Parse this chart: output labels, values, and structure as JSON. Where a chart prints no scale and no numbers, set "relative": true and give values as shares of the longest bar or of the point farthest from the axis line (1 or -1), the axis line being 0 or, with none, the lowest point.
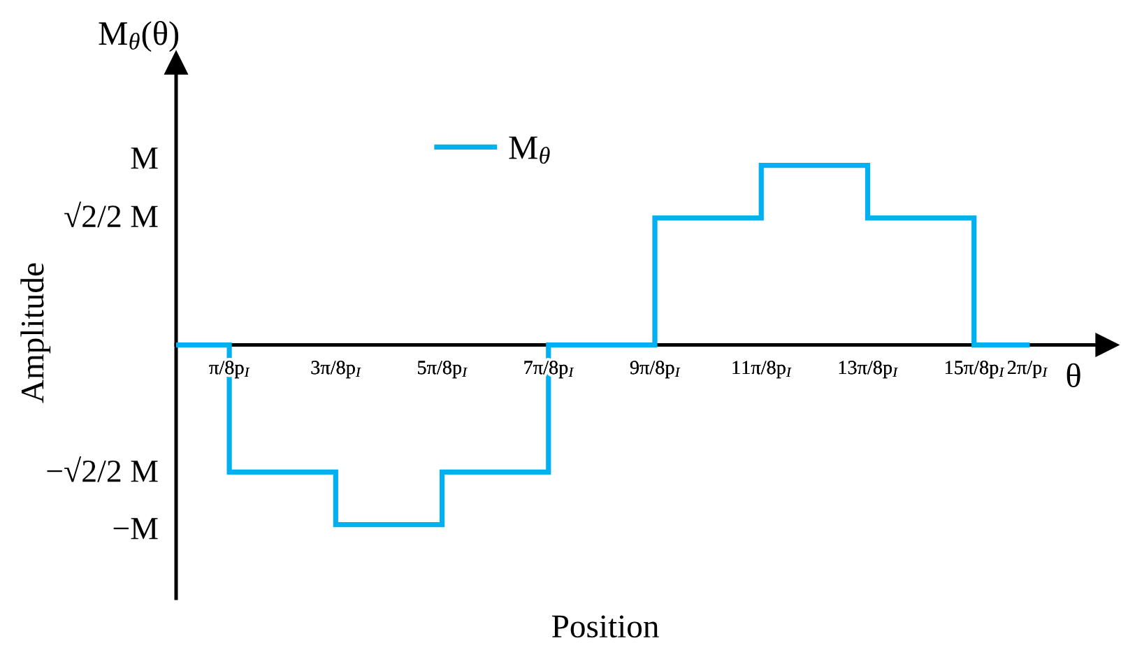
{
  "chart_data": {
    "type": "step",
    "relative": true,
    "xlabel": "Position",
    "ylabel": "Amplitude",
    "annotations": [
      "M$_{θ}$(θ)",
      "θ",
      "M",
      "√2/2 M",
      "−√2/2 M",
      "−M"
    ],
    "categories": [
      null,
      "π/8p$_{I}$",
      null,
      "3π/8p$_{I}$",
      null,
      "5π/8p$_{I}$",
      null,
      "7π/8p$_{I}$",
      null,
      "9π/8p$_{I}$",
      null,
      "11π/8p$_{I}$",
      null,
      "13π/8p$_{I}$",
      null,
      "15π/8p$_{I}$",
      "2π/p$_{I}$"
    ],
    "series": [
      {
        "name": "M$_{θ}$",
        "color": "#00b0f0",
        "values": [
          0,
          -0.707,
          -0.707,
          -1,
          -1,
          -0.707,
          -0.707,
          0,
          0,
          0.707,
          0.707,
          1,
          1,
          0.707,
          0.707,
          0,
          0
        ]
      }
    ],
    "legend": "top"
  }
}
